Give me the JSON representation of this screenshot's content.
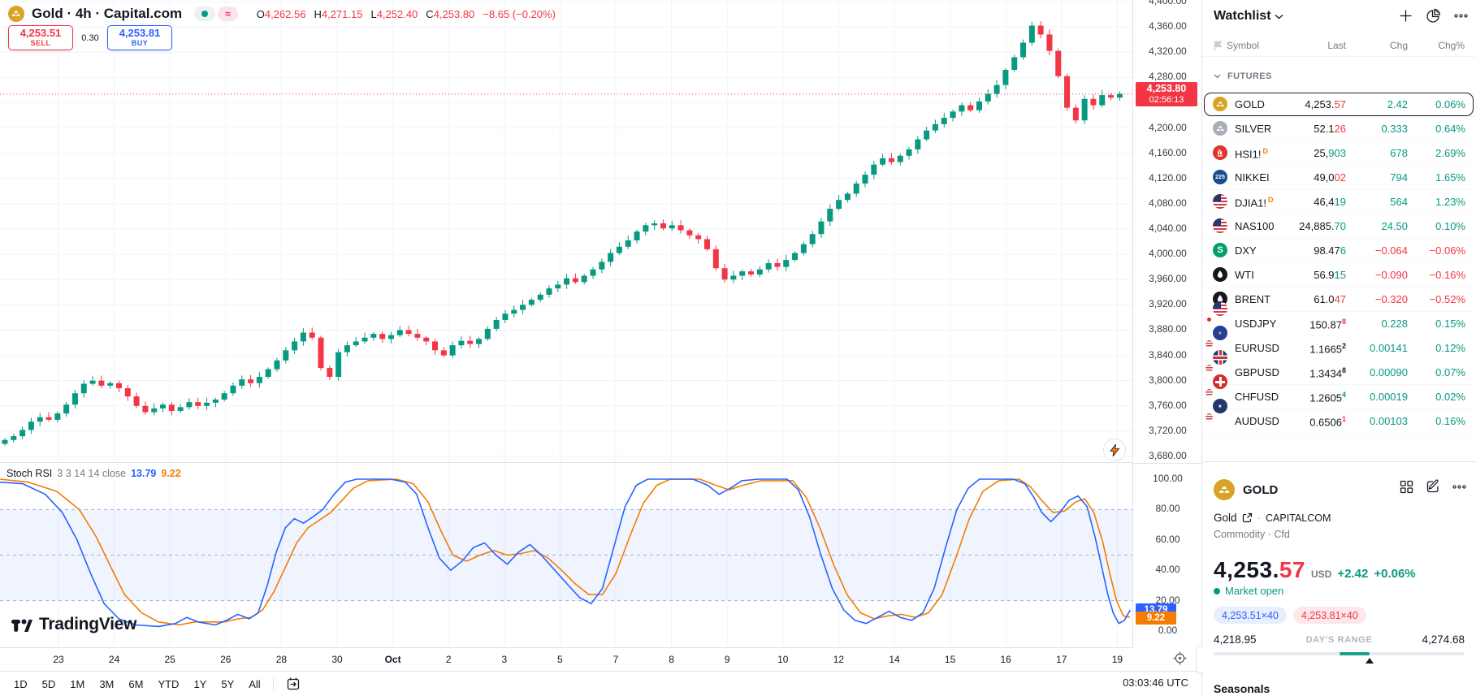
{
  "header": {
    "title": "Gold · 4h · Capital.com",
    "ohlc": {
      "o_label": "O",
      "o": "4,262.56",
      "h_label": "H",
      "h": "4,271.15",
      "l_label": "L",
      "l": "4,252.40",
      "c_label": "C",
      "c": "4,253.80",
      "change": "−8.65 (−0.20%)"
    },
    "sell": {
      "price": "4,253.51",
      "label": "SELL"
    },
    "spread": "0.30",
    "buy": {
      "price": "4,253.81",
      "label": "BUY"
    },
    "approx_chip": "≈"
  },
  "chart_data": {
    "type": "candlestick",
    "title": "Gold · 4h · Capital.com",
    "price_axis": {
      "min": 3680,
      "max": 4400,
      "step": 40
    },
    "last_price": 4253.8,
    "up_color": "#089981",
    "down_color": "#F23645",
    "closes": [
      3706,
      3712,
      3722,
      3735,
      3742,
      3738,
      3748,
      3762,
      3780,
      3795,
      3800,
      3792,
      3796,
      3788,
      3775,
      3760,
      3750,
      3756,
      3762,
      3752,
      3758,
      3766,
      3760,
      3765,
      3770,
      3780,
      3792,
      3802,
      3796,
      3806,
      3818,
      3832,
      3848,
      3862,
      3876,
      3868,
      3820,
      3806,
      3845,
      3856,
      3862,
      3868,
      3874,
      3866,
      3872,
      3880,
      3874,
      3868,
      3862,
      3848,
      3840,
      3856,
      3863,
      3858,
      3866,
      3882,
      3896,
      3906,
      3912,
      3920,
      3928,
      3936,
      3946,
      3952,
      3962,
      3956,
      3966,
      3976,
      3988,
      4002,
      4012,
      4022,
      4036,
      4046,
      4049,
      4041,
      4046,
      4038,
      4030,
      4024,
      4008,
      3978,
      3960,
      3966,
      3973,
      3968,
      3976,
      3986,
      3980,
      3991,
      4002,
      4016,
      4032,
      4052,
      4072,
      4086,
      4096,
      4112,
      4126,
      4142,
      4152,
      4146,
      4156,
      4166,
      4182,
      4196,
      4206,
      4216,
      4226,
      4236,
      4228,
      4242,
      4254,
      4268,
      4292,
      4312,
      4335,
      4362,
      4348,
      4322,
      4282,
      4232,
      4212,
      4246,
      4236,
      4252,
      4248,
      4254
    ],
    "dates": [
      "23",
      "24",
      "25",
      "26",
      "28",
      "30",
      "Oct",
      "2",
      "3",
      "5",
      "7",
      "8",
      "9",
      "10",
      "12",
      "14",
      "15",
      "16",
      "17",
      "19"
    ],
    "month_label": "Oct",
    "stoch_rsi": {
      "k_color": "#2962FF",
      "d_color": "#F57C00",
      "bands": [
        80,
        50,
        20
      ],
      "band_fill_range": [
        20,
        80
      ],
      "k_last": 13.79,
      "d_last": 9.22,
      "k": [
        [
          0,
          98
        ],
        [
          0.02,
          97
        ],
        [
          0.04,
          90
        ],
        [
          0.055,
          78
        ],
        [
          0.068,
          60
        ],
        [
          0.08,
          38
        ],
        [
          0.092,
          18
        ],
        [
          0.105,
          8
        ],
        [
          0.12,
          4
        ],
        [
          0.14,
          3
        ],
        [
          0.155,
          5
        ],
        [
          0.165,
          9
        ],
        [
          0.175,
          6
        ],
        [
          0.19,
          4
        ],
        [
          0.2,
          7
        ],
        [
          0.21,
          11
        ],
        [
          0.22,
          8
        ],
        [
          0.228,
          12
        ],
        [
          0.236,
          30
        ],
        [
          0.244,
          52
        ],
        [
          0.252,
          68
        ],
        [
          0.26,
          74
        ],
        [
          0.268,
          71
        ],
        [
          0.276,
          75
        ],
        [
          0.285,
          80
        ],
        [
          0.295,
          90
        ],
        [
          0.305,
          98
        ],
        [
          0.315,
          100
        ],
        [
          0.345,
          100
        ],
        [
          0.358,
          98
        ],
        [
          0.368,
          90
        ],
        [
          0.378,
          68
        ],
        [
          0.388,
          48
        ],
        [
          0.398,
          40
        ],
        [
          0.408,
          46
        ],
        [
          0.418,
          55
        ],
        [
          0.428,
          58
        ],
        [
          0.438,
          50
        ],
        [
          0.448,
          44
        ],
        [
          0.458,
          52
        ],
        [
          0.468,
          57
        ],
        [
          0.478,
          50
        ],
        [
          0.49,
          40
        ],
        [
          0.502,
          30
        ],
        [
          0.512,
          22
        ],
        [
          0.522,
          18
        ],
        [
          0.532,
          28
        ],
        [
          0.542,
          55
        ],
        [
          0.552,
          82
        ],
        [
          0.562,
          96
        ],
        [
          0.572,
          100
        ],
        [
          0.612,
          100
        ],
        [
          0.625,
          96
        ],
        [
          0.635,
          90
        ],
        [
          0.645,
          94
        ],
        [
          0.655,
          99
        ],
        [
          0.67,
          100
        ],
        [
          0.695,
          100
        ],
        [
          0.705,
          93
        ],
        [
          0.715,
          75
        ],
        [
          0.725,
          50
        ],
        [
          0.735,
          28
        ],
        [
          0.745,
          14
        ],
        [
          0.755,
          7
        ],
        [
          0.765,
          5
        ],
        [
          0.775,
          9
        ],
        [
          0.785,
          13
        ],
        [
          0.795,
          9
        ],
        [
          0.805,
          7
        ],
        [
          0.815,
          12
        ],
        [
          0.825,
          28
        ],
        [
          0.835,
          55
        ],
        [
          0.845,
          80
        ],
        [
          0.855,
          94
        ],
        [
          0.865,
          100
        ],
        [
          0.895,
          100
        ],
        [
          0.905,
          97
        ],
        [
          0.913,
          88
        ],
        [
          0.92,
          78
        ],
        [
          0.928,
          72
        ],
        [
          0.936,
          78
        ],
        [
          0.944,
          86
        ],
        [
          0.952,
          89
        ],
        [
          0.96,
          82
        ],
        [
          0.967,
          62
        ],
        [
          0.973,
          42
        ],
        [
          0.978,
          25
        ],
        [
          0.983,
          12
        ],
        [
          0.988,
          5
        ],
        [
          0.993,
          7
        ],
        [
          0.998,
          13.8
        ]
      ],
      "d": [
        [
          0,
          100
        ],
        [
          0.025,
          98
        ],
        [
          0.05,
          92
        ],
        [
          0.07,
          80
        ],
        [
          0.085,
          62
        ],
        [
          0.098,
          42
        ],
        [
          0.11,
          24
        ],
        [
          0.125,
          12
        ],
        [
          0.14,
          6
        ],
        [
          0.158,
          4
        ],
        [
          0.172,
          6
        ],
        [
          0.185,
          6
        ],
        [
          0.198,
          6
        ],
        [
          0.21,
          8
        ],
        [
          0.222,
          9
        ],
        [
          0.232,
          14
        ],
        [
          0.242,
          26
        ],
        [
          0.252,
          42
        ],
        [
          0.262,
          58
        ],
        [
          0.272,
          68
        ],
        [
          0.282,
          73
        ],
        [
          0.292,
          78
        ],
        [
          0.302,
          86
        ],
        [
          0.312,
          94
        ],
        [
          0.325,
          99
        ],
        [
          0.35,
          100
        ],
        [
          0.365,
          97
        ],
        [
          0.378,
          85
        ],
        [
          0.39,
          65
        ],
        [
          0.4,
          50
        ],
        [
          0.412,
          46
        ],
        [
          0.424,
          50
        ],
        [
          0.436,
          53
        ],
        [
          0.448,
          50
        ],
        [
          0.46,
          51
        ],
        [
          0.472,
          53
        ],
        [
          0.484,
          48
        ],
        [
          0.496,
          40
        ],
        [
          0.508,
          31
        ],
        [
          0.52,
          24
        ],
        [
          0.532,
          24
        ],
        [
          0.544,
          38
        ],
        [
          0.556,
          62
        ],
        [
          0.568,
          84
        ],
        [
          0.58,
          96
        ],
        [
          0.592,
          100
        ],
        [
          0.618,
          100
        ],
        [
          0.632,
          96
        ],
        [
          0.644,
          93
        ],
        [
          0.656,
          96
        ],
        [
          0.672,
          99
        ],
        [
          0.7,
          99
        ],
        [
          0.712,
          88
        ],
        [
          0.724,
          68
        ],
        [
          0.736,
          44
        ],
        [
          0.748,
          24
        ],
        [
          0.76,
          12
        ],
        [
          0.772,
          8
        ],
        [
          0.784,
          10
        ],
        [
          0.796,
          11
        ],
        [
          0.808,
          9
        ],
        [
          0.82,
          12
        ],
        [
          0.832,
          24
        ],
        [
          0.844,
          48
        ],
        [
          0.856,
          74
        ],
        [
          0.868,
          92
        ],
        [
          0.882,
          99
        ],
        [
          0.9,
          100
        ],
        [
          0.91,
          95
        ],
        [
          0.92,
          86
        ],
        [
          0.93,
          78
        ],
        [
          0.94,
          79
        ],
        [
          0.95,
          85
        ],
        [
          0.958,
          87
        ],
        [
          0.966,
          78
        ],
        [
          0.974,
          58
        ],
        [
          0.98,
          38
        ],
        [
          0.986,
          20
        ],
        [
          0.992,
          10
        ],
        [
          0.998,
          9.2
        ]
      ]
    }
  },
  "price_axis": {
    "last_tag": {
      "price": "4,253.80",
      "countdown": "02:56:13"
    }
  },
  "stoch": {
    "title": "Stoch RSI",
    "params": "3 3 14 14 close",
    "k": "13.79",
    "d": "9.22",
    "axis": [
      "100.00",
      "80.00",
      "60.00",
      "40.00",
      "20.00",
      "0.00"
    ]
  },
  "time_axis": {
    "utc": "03:03:46 UTC"
  },
  "toolbar": {
    "ranges": [
      "1D",
      "5D",
      "1M",
      "3M",
      "6M",
      "YTD",
      "1Y",
      "5Y",
      "All"
    ]
  },
  "logo": {
    "text": "TradingView"
  },
  "watchlist": {
    "title": "Watchlist",
    "columns": [
      "Symbol",
      "Last",
      "Chg",
      "Chg%"
    ],
    "section": "FUTURES",
    "up_color": "#089981",
    "down_color": "#F23645",
    "rows": [
      {
        "symbol": "GOLD",
        "icon": "gold",
        "selected": true,
        "last": [
          [
            "4,253.",
            "#131722"
          ],
          [
            "57",
            "#F23645"
          ]
        ],
        "chg": "2.42",
        "chgp": "0.06%",
        "dir": "up"
      },
      {
        "symbol": "SILVER",
        "icon": "silver",
        "last": [
          [
            "52.1",
            "#131722"
          ],
          [
            "26",
            "#F23645"
          ]
        ],
        "chg": "0.333",
        "chgp": "0.64%",
        "dir": "up"
      },
      {
        "symbol": "HSI1!",
        "icon": "hsi",
        "badge": "D",
        "last": [
          [
            "25,",
            "#131722"
          ],
          [
            "903",
            "#089981"
          ]
        ],
        "chg": "678",
        "chgp": "2.69%",
        "dir": "up"
      },
      {
        "symbol": "NIKKEI",
        "icon": "nikkei",
        "last": [
          [
            "49,0",
            "#131722"
          ],
          [
            "02",
            "#F23645"
          ]
        ],
        "chg": "794",
        "chgp": "1.65%",
        "dir": "up"
      },
      {
        "symbol": "DJIA1!",
        "icon": "us",
        "badge": "D",
        "last": [
          [
            "46,4",
            "#131722"
          ],
          [
            "19",
            "#089981"
          ]
        ],
        "chg": "564",
        "chgp": "1.23%",
        "dir": "up"
      },
      {
        "symbol": "NAS100",
        "icon": "us",
        "last": [
          [
            "24,885.",
            "#131722"
          ],
          [
            "70",
            "#089981"
          ]
        ],
        "chg": "24.50",
        "chgp": "0.10%",
        "dir": "up"
      },
      {
        "symbol": "DXY",
        "icon": "dxy",
        "last": [
          [
            "98.47",
            "#131722"
          ],
          [
            "6",
            "#089981"
          ]
        ],
        "chg": "−0.064",
        "chgp": "−0.06%",
        "dir": "down"
      },
      {
        "symbol": "WTI",
        "icon": "oil",
        "last": [
          [
            "56.9",
            "#131722"
          ],
          [
            "15",
            "#089981"
          ]
        ],
        "chg": "−0.090",
        "chgp": "−0.16%",
        "dir": "down"
      },
      {
        "symbol": "BRENT",
        "icon": "oil",
        "last": [
          [
            "61.0",
            "#131722"
          ],
          [
            "47",
            "#F23645"
          ]
        ],
        "chg": "−0.320",
        "chgp": "−0.52%",
        "dir": "down"
      },
      {
        "symbol": "USDJPY",
        "icon": "usdjpy",
        "last": [
          [
            "150.87",
            "#131722"
          ],
          [
            "8",
            "#F23645",
            "sup"
          ]
        ],
        "chg": "0.228",
        "chgp": "0.15%",
        "dir": "up"
      },
      {
        "symbol": "EURUSD",
        "icon": "eurusd",
        "last": [
          [
            "1.1665",
            "#131722"
          ],
          [
            "2",
            "#131722",
            "sup"
          ]
        ],
        "chg": "0.00141",
        "chgp": "0.12%",
        "dir": "up"
      },
      {
        "symbol": "GBPUSD",
        "icon": "gbpusd",
        "last": [
          [
            "1.3434",
            "#131722"
          ],
          [
            "8",
            "#131722",
            "sup"
          ]
        ],
        "chg": "0.00090",
        "chgp": "0.07%",
        "dir": "up"
      },
      {
        "symbol": "CHFUSD",
        "icon": "chfusd",
        "last": [
          [
            "1.2605",
            "#131722"
          ],
          [
            "4",
            "#089981",
            "sup"
          ]
        ],
        "chg": "0.00019",
        "chgp": "0.02%",
        "dir": "up"
      },
      {
        "symbol": "AUDUSD",
        "icon": "audusd",
        "last": [
          [
            "0.6506",
            "#131722"
          ],
          [
            "1",
            "#F23645",
            "sup"
          ]
        ],
        "chg": "0.00103",
        "chgp": "0.16%",
        "dir": "up"
      }
    ]
  },
  "detail": {
    "symbol": "GOLD",
    "name": "Gold",
    "exchange": "CAPITALCOM",
    "meta": "Commodity · Cfd",
    "price_main": "4,253.",
    "price_tail": "57",
    "currency": "USD",
    "change": "+2.42",
    "change_pct": "+0.06%",
    "status": "Market open",
    "bid": "4,253.51×40",
    "ask": "4,253.81×40",
    "range_low": "4,218.95",
    "range_label": "DAY'S RANGE",
    "range_high": "4,274.68",
    "range_bar": {
      "fill_from": 0.5,
      "fill_to": 0.62,
      "marker": 0.62
    },
    "seasonals": "Seasonals"
  }
}
